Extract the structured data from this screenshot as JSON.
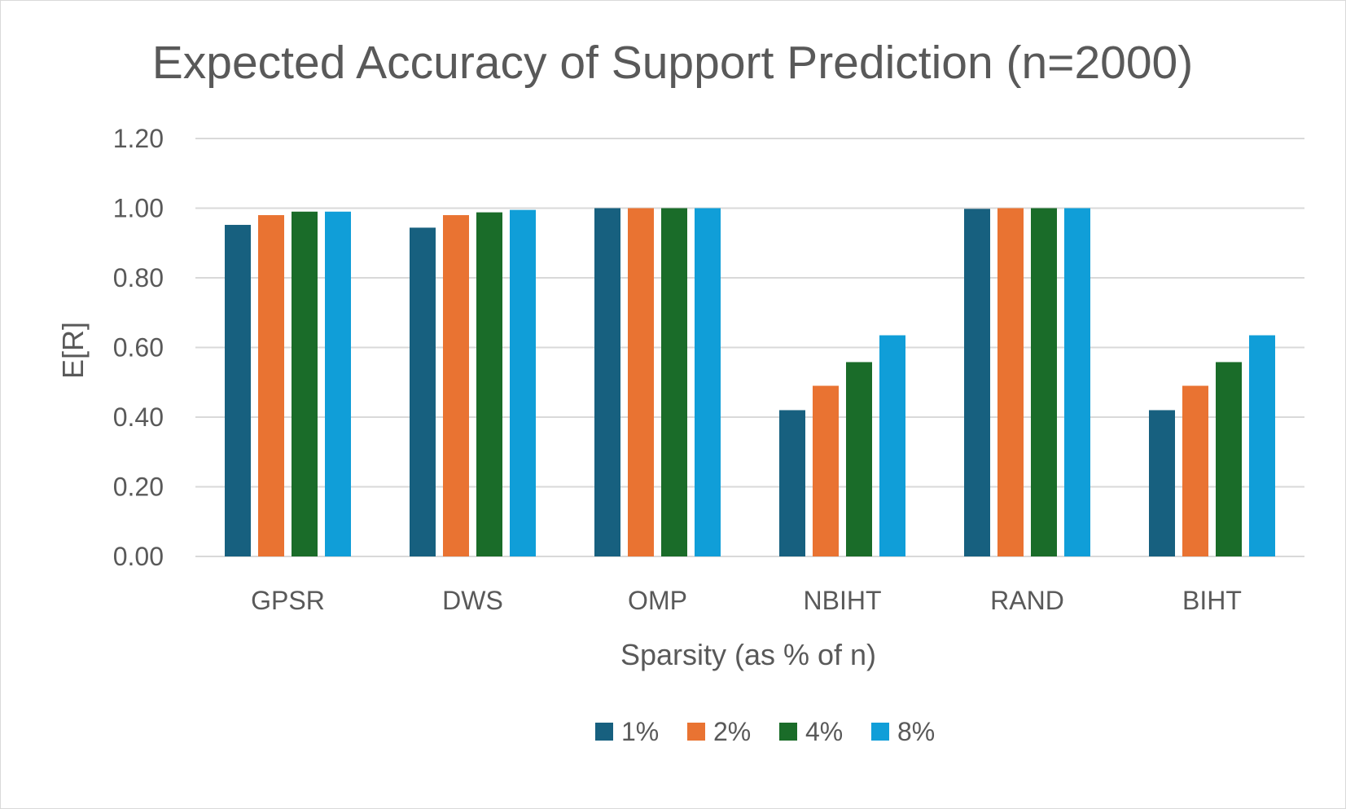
{
  "chart_data": {
    "type": "bar",
    "title": "Expected Accuracy of Support Prediction (n=2000)",
    "xlabel": "Sparsity (as % of n)",
    "ylabel": "E[R]",
    "ylim": [
      0,
      1.2
    ],
    "yticks": [
      "0.00",
      "0.20",
      "0.40",
      "0.60",
      "0.80",
      "1.00",
      "1.20"
    ],
    "grid": true,
    "legend_position": "bottom",
    "categories": [
      "GPSR",
      "DWS",
      "OMP",
      "NBIHT",
      "RAND",
      "BIHT"
    ],
    "series": [
      {
        "name": "1%",
        "color": "#17607f",
        "values": [
          0.952,
          0.944,
          1.0,
          0.42,
          0.998,
          0.42
        ]
      },
      {
        "name": "2%",
        "color": "#e97332",
        "values": [
          0.98,
          0.98,
          1.0,
          0.49,
          1.0,
          0.49
        ]
      },
      {
        "name": "4%",
        "color": "#1a6c29",
        "values": [
          0.99,
          0.988,
          1.0,
          0.558,
          1.0,
          0.558
        ]
      },
      {
        "name": "8%",
        "color": "#109ed8",
        "values": [
          0.99,
          0.995,
          1.0,
          0.635,
          1.0,
          0.635
        ]
      }
    ]
  },
  "colors": {
    "text": "#595959",
    "gridline": "#d9d9d9",
    "border": "#d9d9d9"
  }
}
